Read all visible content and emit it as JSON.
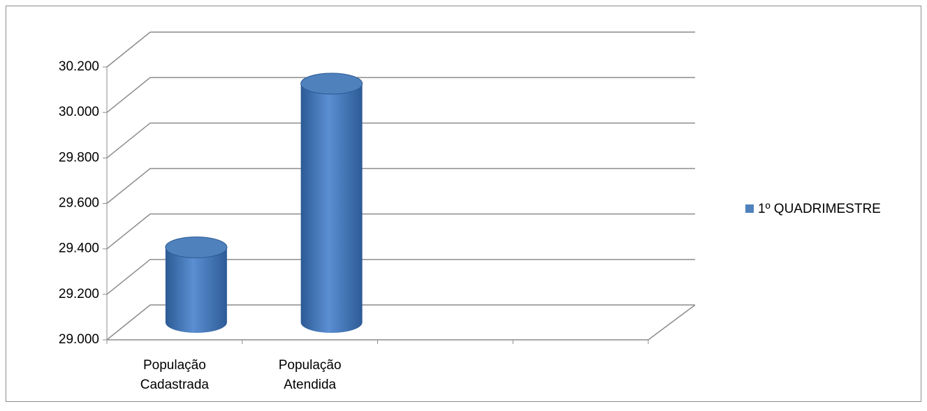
{
  "chart_data": {
    "type": "bar3d-cylinder",
    "categories": [
      "População Cadastrada",
      "População Atendida",
      null,
      null
    ],
    "series": [
      {
        "name": "1º QUADRIMESTRE",
        "color": "#4f81bd",
        "values": [
          29330,
          30050,
          null,
          null
        ]
      }
    ],
    "ylim": [
      29000,
      30200
    ],
    "yticks": [
      {
        "value": 29000,
        "label": "29.000"
      },
      {
        "value": 29200,
        "label": "29.200"
      },
      {
        "value": 29400,
        "label": "29.400"
      },
      {
        "value": 29600,
        "label": "29.600"
      },
      {
        "value": 29800,
        "label": "29.800"
      },
      {
        "value": 30000,
        "label": "30.000"
      },
      {
        "value": 30200,
        "label": "30.200"
      }
    ],
    "grid": true,
    "legend": "right"
  }
}
